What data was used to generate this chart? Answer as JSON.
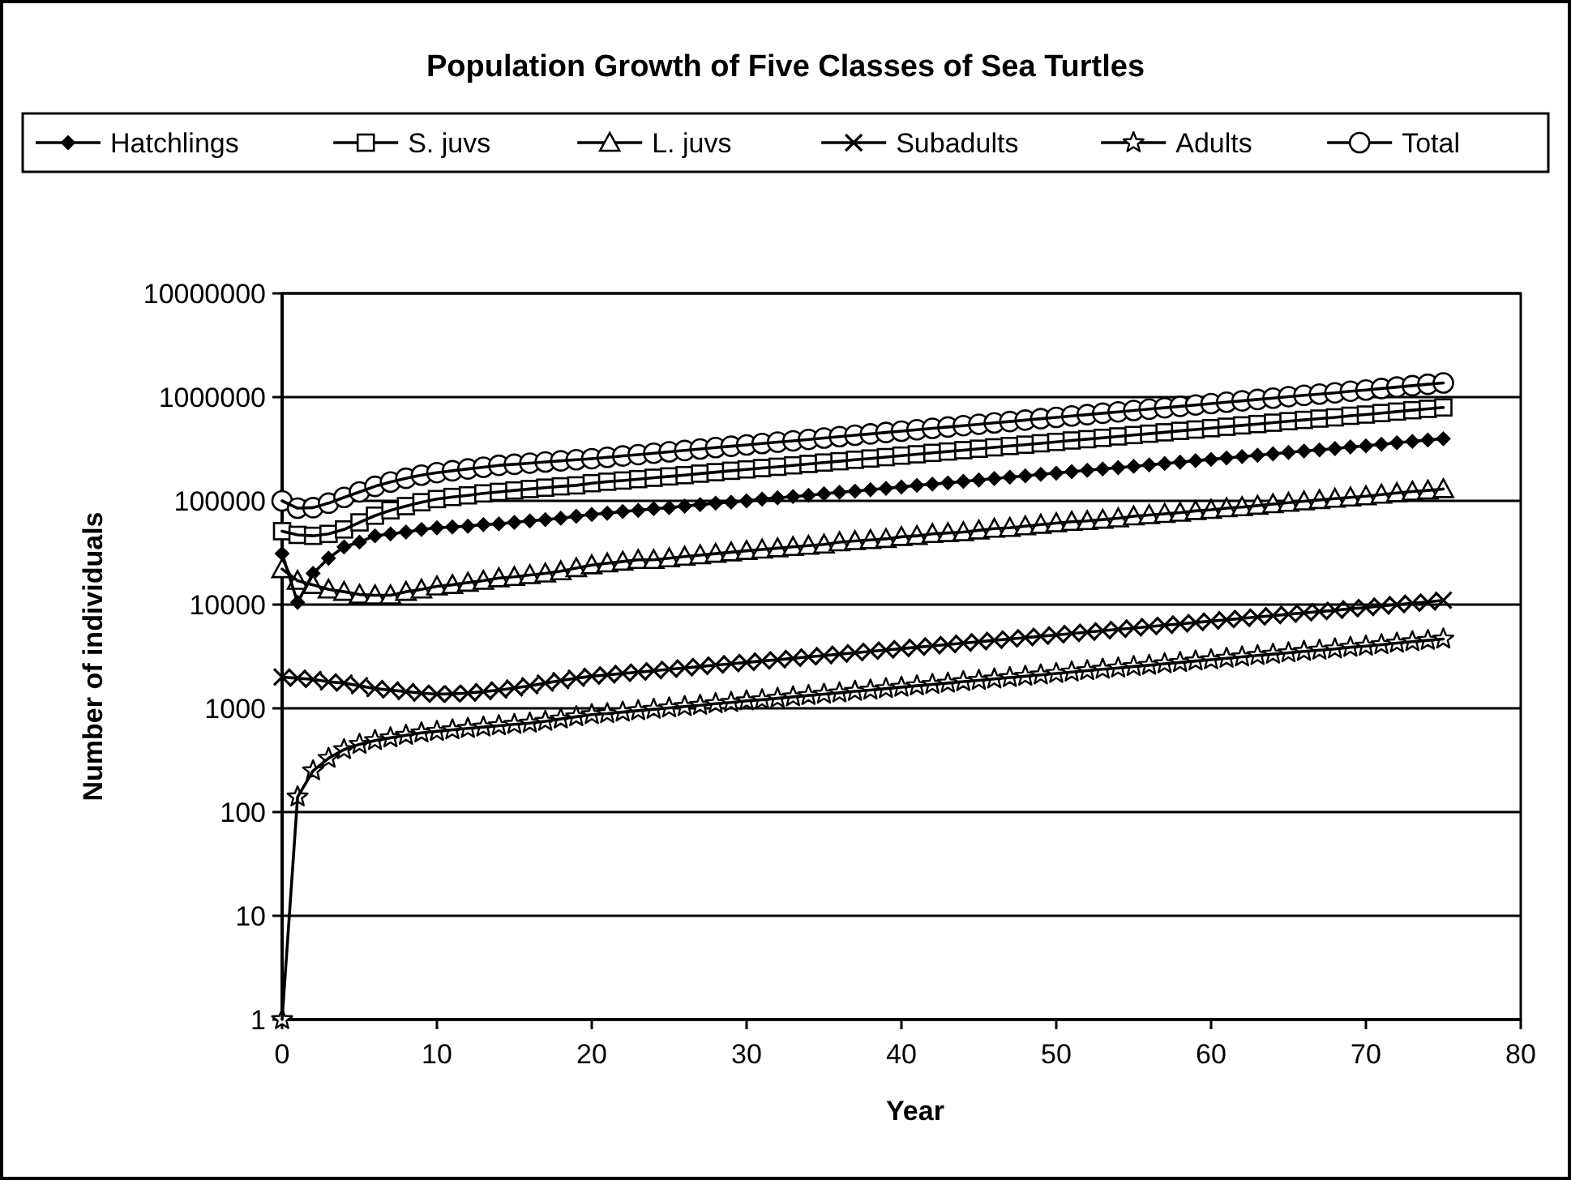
{
  "chart_data": {
    "type": "line",
    "title": "Population Growth of Five Classes of Sea Turtles",
    "xlabel": "Year",
    "ylabel": "Number of individuals",
    "x": [
      0,
      1,
      2,
      3,
      4,
      5,
      6,
      7,
      8,
      9,
      10,
      11,
      12,
      13,
      14,
      15,
      16,
      17,
      18,
      19,
      20,
      21,
      22,
      23,
      24,
      25,
      26,
      27,
      28,
      29,
      30,
      31,
      32,
      33,
      34,
      35,
      36,
      37,
      38,
      39,
      40,
      41,
      42,
      43,
      44,
      45,
      46,
      47,
      48,
      49,
      50,
      51,
      52,
      53,
      54,
      55,
      56,
      57,
      58,
      59,
      60,
      61,
      62,
      63,
      64,
      65,
      66,
      67,
      68,
      69,
      70,
      71,
      72,
      73,
      74,
      75
    ],
    "series": [
      {
        "name": "Hatchlings",
        "color": "#000000",
        "marker": "diamond",
        "values": [
          31000,
          10500,
          20000,
          28000,
          36000,
          40000,
          46000,
          48000,
          50000,
          53000,
          55000,
          56000,
          57000,
          59000,
          60000,
          62000,
          64000,
          66000,
          68000,
          71000,
          74000,
          76000,
          79000,
          81000,
          84000,
          86000,
          89000,
          92000,
          95000,
          97000,
          100000,
          104000,
          107000,
          110000,
          113000,
          117000,
          121000,
          124000,
          128000,
          132000,
          136000,
          141000,
          145000,
          149000,
          154000,
          159000,
          164000,
          169000,
          174000,
          180000,
          185000,
          191000,
          197000,
          203000,
          209000,
          215000,
          222000,
          229000,
          236000,
          244000,
          251000,
          259000,
          267000,
          275000,
          284000,
          293000,
          302000,
          310000,
          319000,
          331000,
          339000,
          351000,
          363000,
          374000,
          386000,
          397000
        ]
      },
      {
        "name": "S. juvs",
        "color": "#000000",
        "marker": "square",
        "values": [
          51000,
          47000,
          46000,
          48000,
          53000,
          62000,
          72000,
          81000,
          89000,
          97000,
          104000,
          109000,
          113000,
          118000,
          122000,
          126000,
          130000,
          134000,
          138000,
          141000,
          148000,
          153000,
          157000,
          162000,
          167000,
          172000,
          177000,
          183000,
          189000,
          195000,
          201000,
          207000,
          213000,
          220000,
          227000,
          234000,
          241000,
          249000,
          256000,
          264000,
          273000,
          281000,
          290000,
          299000,
          308000,
          318000,
          328000,
          338000,
          348000,
          359000,
          370000,
          382000,
          393000,
          405000,
          418000,
          431000,
          444000,
          458000,
          473000,
          487000,
          502000,
          518000,
          534000,
          550000,
          567000,
          586000,
          603000,
          621000,
          638000,
          661000,
          679000,
          702000,
          725000,
          748000,
          771000,
          795000
        ]
      },
      {
        "name": "L. juvs",
        "color": "#000000",
        "marker": "triangle",
        "values": [
          22000,
          17000,
          15500,
          14000,
          13300,
          12500,
          12300,
          12300,
          13300,
          14000,
          15000,
          15500,
          16300,
          17000,
          18000,
          18500,
          19300,
          20000,
          21000,
          22500,
          24000,
          25000,
          26000,
          27000,
          27000,
          28000,
          29000,
          30000,
          31000,
          32000,
          33000,
          34000,
          35000,
          36000,
          37000,
          38000,
          40000,
          41000,
          42000,
          43000,
          45000,
          46000,
          48000,
          49000,
          50000,
          52000,
          54000,
          55000,
          57000,
          59000,
          61000,
          63000,
          64000,
          66000,
          68000,
          71000,
          73000,
          75000,
          77000,
          80000,
          82000,
          85000,
          87000,
          90000,
          93000,
          96000,
          99000,
          102000,
          105000,
          108000,
          111000,
          115000,
          119000,
          123000,
          126000,
          130000
        ]
      },
      {
        "name": "Subadults",
        "color": "#000000",
        "marker": "cross",
        "values": [
          2000,
          1950,
          1900,
          1800,
          1750,
          1650,
          1550,
          1500,
          1450,
          1400,
          1370,
          1380,
          1400,
          1450,
          1500,
          1570,
          1650,
          1750,
          1850,
          1950,
          2040,
          2100,
          2170,
          2230,
          2300,
          2380,
          2450,
          2530,
          2610,
          2690,
          2770,
          2860,
          2940,
          3030,
          3130,
          3220,
          3330,
          3430,
          3540,
          3650,
          3760,
          3880,
          4000,
          4120,
          4250,
          4380,
          4520,
          4660,
          4800,
          4950,
          5100,
          5260,
          5420,
          5590,
          5770,
          5940,
          6130,
          6320,
          6520,
          6720,
          6930,
          7140,
          7360,
          7590,
          7820,
          8080,
          8320,
          8560,
          8800,
          9120,
          9360,
          9680,
          10000,
          10300,
          10600,
          11000
        ]
      },
      {
        "name": "Adults",
        "color": "#000000",
        "marker": "star",
        "values": [
          1,
          140,
          250,
          330,
          400,
          450,
          490,
          520,
          550,
          580,
          600,
          620,
          640,
          660,
          680,
          700,
          720,
          750,
          790,
          830,
          870,
          890,
          920,
          950,
          980,
          1010,
          1040,
          1070,
          1110,
          1140,
          1180,
          1210,
          1250,
          1290,
          1330,
          1370,
          1410,
          1460,
          1500,
          1550,
          1600,
          1650,
          1700,
          1750,
          1810,
          1860,
          1920,
          1980,
          2040,
          2100,
          2170,
          2240,
          2310,
          2380,
          2450,
          2530,
          2600,
          2690,
          2770,
          2860,
          2940,
          3040,
          3130,
          3230,
          3330,
          3430,
          3540,
          3640,
          3740,
          3880,
          3980,
          4110,
          4250,
          4390,
          4520,
          4660
        ]
      },
      {
        "name": "Total",
        "color": "#000000",
        "marker": "circle",
        "values": [
          100000,
          85000,
          86000,
          95000,
          108000,
          122000,
          138000,
          152000,
          165000,
          177000,
          187000,
          195000,
          203000,
          211000,
          220000,
          225000,
          231000,
          237000,
          243000,
          249000,
          255000,
          263000,
          271000,
          279000,
          288000,
          297000,
          306000,
          316000,
          326000,
          336000,
          346000,
          357000,
          368000,
          379000,
          391000,
          403000,
          416000,
          429000,
          442000,
          456000,
          470000,
          485000,
          500000,
          515000,
          531000,
          548000,
          565000,
          582000,
          600000,
          619000,
          638000,
          658000,
          678000,
          699000,
          721000,
          743000,
          766000,
          790000,
          815000,
          840000,
          866000,
          893000,
          920000,
          949000,
          978000,
          1010000,
          1040000,
          1070000,
          1100000,
          1140000,
          1170000,
          1210000,
          1250000,
          1290000,
          1330000,
          1370000
        ]
      }
    ],
    "xlim": [
      0,
      80
    ],
    "xticks": [
      0,
      10,
      20,
      30,
      40,
      50,
      60,
      70,
      80
    ],
    "ylim": [
      1,
      10000000
    ],
    "yticks": [
      1,
      10,
      100,
      1000,
      10000,
      100000,
      1000000,
      10000000
    ],
    "log": "y",
    "grid": "y",
    "legend": "top",
    "line_style": "solid"
  }
}
